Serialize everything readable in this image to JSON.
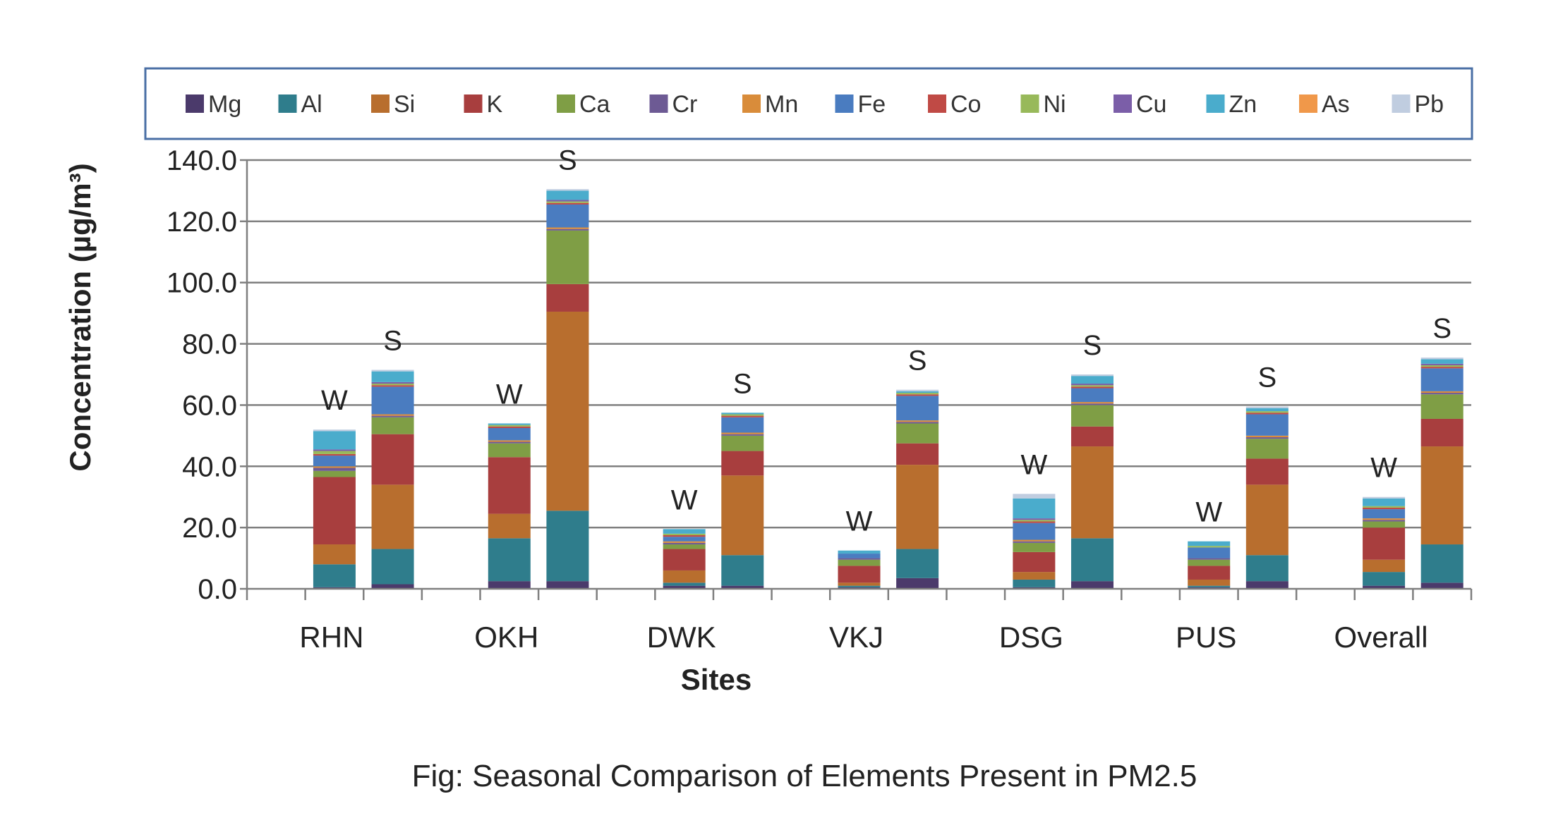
{
  "chart_data": {
    "type": "bar",
    "stacked": true,
    "caption": "Fig: Seasonal Comparison of Elements Present in PM2.5",
    "xlabel": "Sites",
    "ylabel": "Concentration (µg/m³)",
    "ylim": [
      0,
      140
    ],
    "yticks": [
      "0.0",
      "20.0",
      "40.0",
      "60.0",
      "80.0",
      "100.0",
      "120.0",
      "140.0"
    ],
    "grid": true,
    "legend_position": "top",
    "sites": [
      "RHN",
      "OKH",
      "DWK",
      "VKJ",
      "DSG",
      "PUS",
      "Overall"
    ],
    "seasons": [
      "W",
      "S"
    ],
    "bars": [
      {
        "site": "RHN",
        "season": "W",
        "values": [
          0.5,
          7.5,
          6.5,
          22.0,
          2.0,
          1.0,
          0.5,
          3.5,
          0.5,
          1.0,
          0.5,
          6.0,
          0.0,
          0.5
        ]
      },
      {
        "site": "RHN",
        "season": "S",
        "values": [
          1.5,
          11.5,
          21.0,
          16.5,
          5.5,
          0.5,
          0.5,
          9.0,
          0.5,
          0.5,
          0.5,
          3.5,
          0.0,
          0.5
        ]
      },
      {
        "site": "OKH",
        "season": "W",
        "values": [
          2.5,
          14.0,
          8.0,
          18.5,
          4.5,
          0.5,
          0.5,
          4.0,
          0.5,
          0.5,
          0.0,
          0.5,
          0.0,
          0.0
        ]
      },
      {
        "site": "OKH",
        "season": "S",
        "values": [
          2.5,
          23.0,
          65.0,
          9.0,
          17.5,
          0.5,
          0.5,
          7.5,
          0.5,
          0.5,
          0.5,
          3.0,
          0.0,
          0.5
        ]
      },
      {
        "site": "DWK",
        "season": "W",
        "values": [
          1.0,
          1.0,
          4.0,
          7.0,
          1.5,
          0.5,
          0.5,
          1.5,
          0.5,
          0.5,
          0.0,
          1.5,
          0.0,
          0.0
        ]
      },
      {
        "site": "DWK",
        "season": "S",
        "values": [
          1.0,
          10.0,
          26.0,
          8.0,
          5.0,
          0.5,
          0.5,
          5.0,
          0.5,
          0.5,
          0.0,
          0.5,
          0.0,
          0.0
        ]
      },
      {
        "site": "VKJ",
        "season": "W",
        "values": [
          0.5,
          0.5,
          1.0,
          5.5,
          2.0,
          0.5,
          0.0,
          1.5,
          0.0,
          0.0,
          0.0,
          1.0,
          0.0,
          0.0
        ]
      },
      {
        "site": "VKJ",
        "season": "S",
        "values": [
          3.5,
          9.5,
          27.5,
          7.0,
          6.5,
          0.5,
          0.5,
          8.0,
          0.5,
          0.5,
          0.0,
          0.5,
          0.0,
          0.5
        ]
      },
      {
        "site": "DSG",
        "season": "W",
        "values": [
          0.5,
          2.5,
          2.5,
          6.5,
          3.0,
          0.5,
          0.5,
          5.5,
          0.5,
          0.5,
          0.5,
          6.5,
          0.0,
          1.5
        ]
      },
      {
        "site": "DSG",
        "season": "S",
        "values": [
          2.5,
          14.0,
          30.0,
          6.5,
          7.0,
          0.5,
          0.5,
          4.5,
          0.5,
          0.5,
          0.5,
          2.5,
          0.0,
          0.5
        ]
      },
      {
        "site": "PUS",
        "season": "W",
        "values": [
          0.5,
          0.5,
          2.0,
          4.5,
          2.0,
          0.5,
          0.0,
          3.5,
          0.0,
          0.5,
          0.0,
          1.5,
          0.0,
          0.0
        ]
      },
      {
        "site": "PUS",
        "season": "S",
        "values": [
          2.5,
          8.5,
          23.0,
          8.5,
          6.5,
          0.5,
          0.5,
          7.0,
          0.5,
          0.5,
          0.0,
          1.0,
          0.0,
          0.5
        ]
      },
      {
        "site": "Overall",
        "season": "W",
        "values": [
          1.0,
          4.5,
          4.0,
          10.5,
          2.0,
          0.5,
          0.5,
          3.0,
          0.5,
          0.5,
          0.0,
          2.5,
          0.0,
          0.5
        ]
      },
      {
        "site": "Overall",
        "season": "S",
        "values": [
          2.0,
          12.5,
          32.0,
          9.0,
          8.0,
          0.5,
          0.5,
          7.5,
          0.5,
          0.5,
          0.5,
          1.5,
          0.0,
          0.5
        ]
      }
    ],
    "series": [
      {
        "name": "Mg",
        "color": "#4b3a6b"
      },
      {
        "name": "Al",
        "color": "#2f7d8c"
      },
      {
        "name": "Si",
        "color": "#b86e2e"
      },
      {
        "name": "K",
        "color": "#a83e3e"
      },
      {
        "name": "Ca",
        "color": "#7f9e45"
      },
      {
        "name": "Cr",
        "color": "#6d5a94"
      },
      {
        "name": "Mn",
        "color": "#d98c3a"
      },
      {
        "name": "Fe",
        "color": "#4a7cc0"
      },
      {
        "name": "Co",
        "color": "#c04a45"
      },
      {
        "name": "Ni",
        "color": "#98b95a"
      },
      {
        "name": "Cu",
        "color": "#7b5ea8"
      },
      {
        "name": "Zn",
        "color": "#4aaccc"
      },
      {
        "name": "As",
        "color": "#f0984a"
      },
      {
        "name": "Pb",
        "color": "#c0cde0"
      }
    ]
  }
}
